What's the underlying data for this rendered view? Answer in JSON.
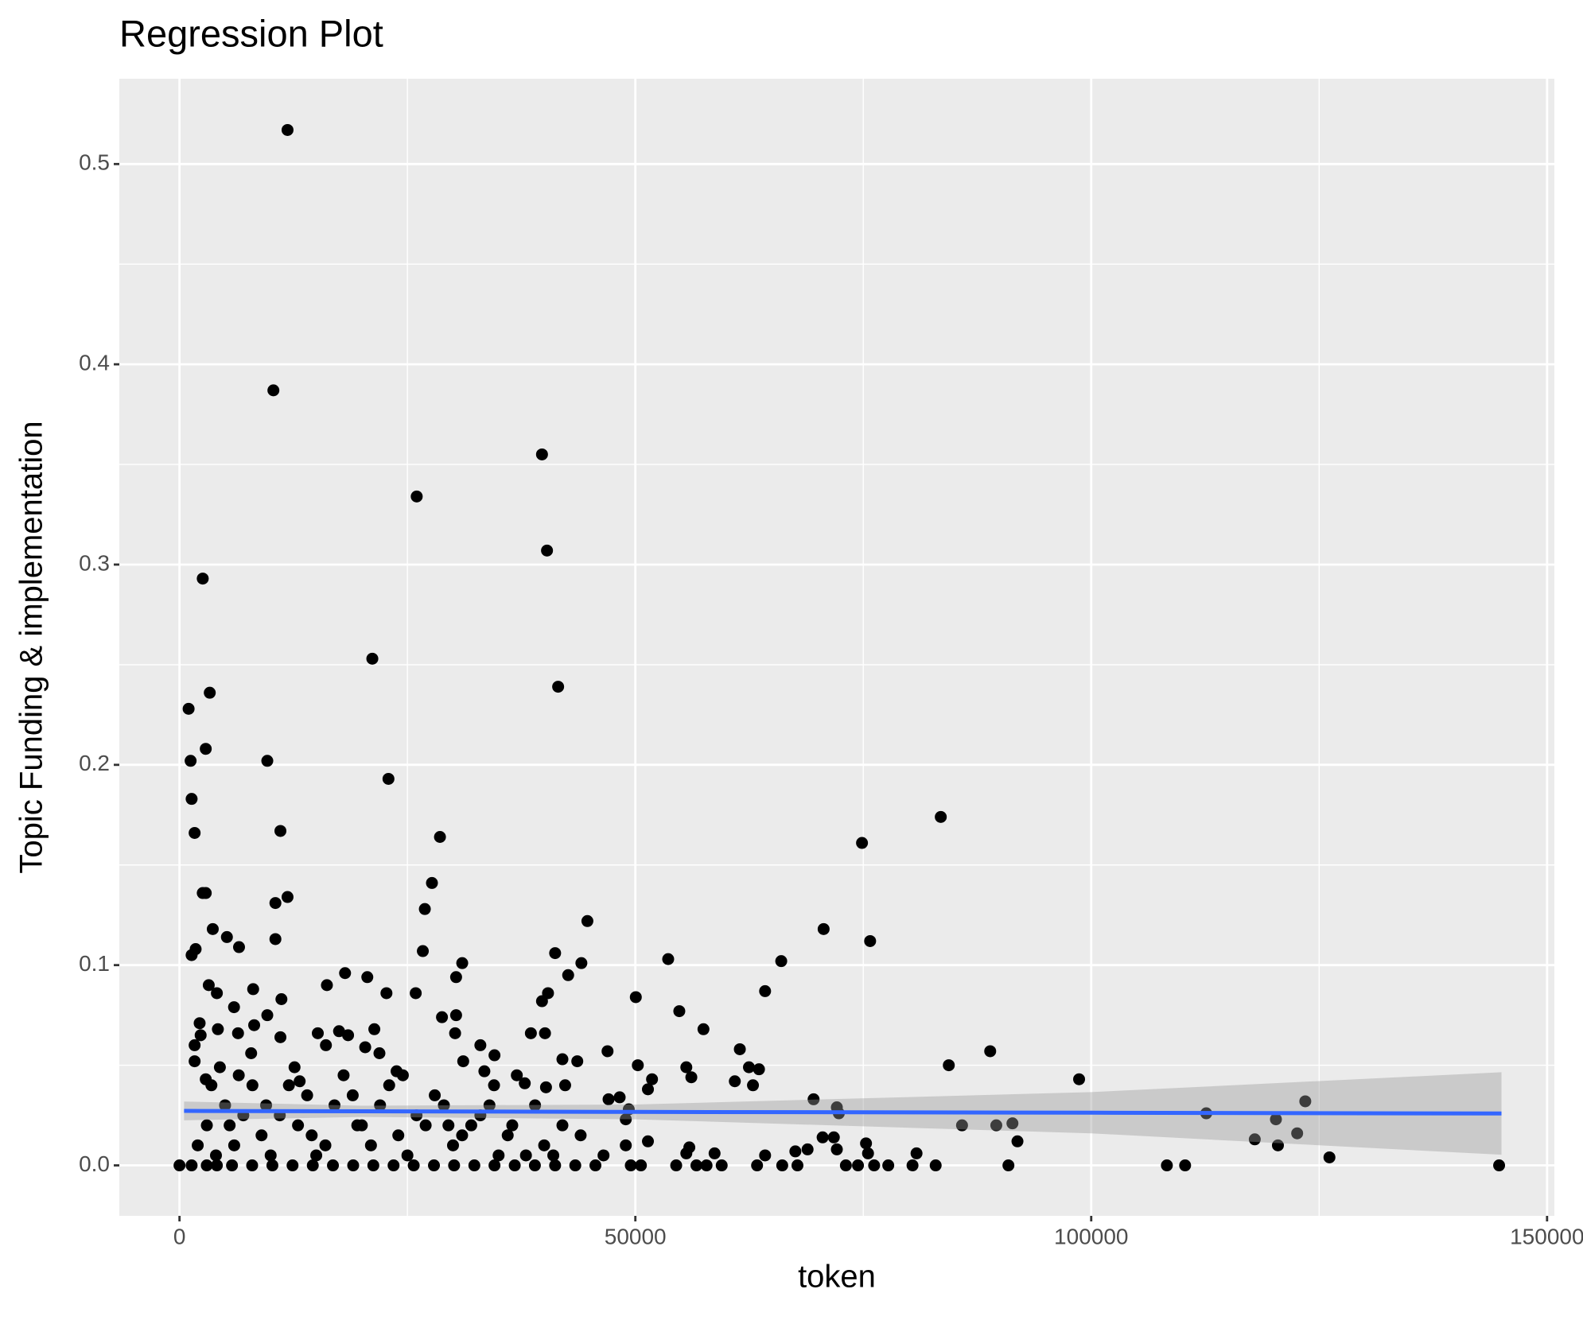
{
  "chart_data": {
    "type": "scatter",
    "title": "Regression Plot",
    "x_label": "token",
    "y_label": "Topic Funding & implementation",
    "xlim": [
      -6600,
      150800
    ],
    "ylim": [
      -0.0252,
      0.5426
    ],
    "xticks": [
      0,
      50000,
      100000,
      150000
    ],
    "yticks": [
      {
        "value": 0,
        "label": "0.0"
      },
      0.1,
      0.2,
      0.3,
      0.4,
      0.5
    ],
    "minor_xticks": [
      25000,
      75000,
      125000
    ],
    "minor_yticks": [
      0.05,
      0.15,
      0.25,
      0.35,
      0.45
    ],
    "grid": true,
    "color": "#000000",
    "x": [
      11850,
      10300,
      39760,
      26020,
      40310,
      2550,
      21150,
      3320,
      41530,
      1000,
      1220,
      2880,
      9630,
      22920,
      1330,
      1660,
      11070,
      28570,
      74860,
      83500,
      2550,
      2880,
      10520,
      11850,
      27690,
      26910,
      44740,
      70650,
      75750,
      10520,
      3650,
      1330,
      1770,
      26690,
      31010,
      41200,
      53600,
      66000,
      44080,
      5200,
      6530,
      18160,
      20600,
      30340,
      42630,
      3210,
      8080,
      16170,
      22700,
      25910,
      50050,
      64230,
      40420,
      39760,
      11180,
      4100,
      5980,
      9630,
      28790,
      30340,
      54820,
      2210,
      8190,
      57470,
      17500,
      21370,
      4210,
      6420,
      11070,
      15170,
      18490,
      30230,
      38540,
      40090,
      2320,
      1660,
      16060,
      20370,
      33000,
      61460,
      88920,
      46950,
      7860,
      21930,
      34550,
      42000,
      43630,
      1660,
      31120,
      84380,
      50270,
      55590,
      62460,
      63560,
      4430,
      12620,
      23810,
      33440,
      51830,
      56140,
      98670,
      60910,
      62900,
      2880,
      13180,
      37870,
      40200,
      42300,
      51380,
      47060,
      48280,
      69550,
      72100,
      123480,
      49280,
      112620,
      72320,
      48950,
      85830,
      89590,
      91360,
      120260,
      122590,
      91910,
      117940,
      70540,
      71770,
      75300,
      120480,
      72100,
      68890,
      51380,
      55920,
      48950,
      126130,
      80840,
      75520,
      58690,
      64230,
      67550,
      46510,
      55590,
      3000,
      5000,
      7000,
      9000,
      12000,
      14000,
      16000,
      18000,
      20000,
      22000,
      24000,
      26000,
      28000,
      30000,
      32000,
      34000,
      36000,
      38000,
      40000,
      42000,
      44000,
      4000,
      6000,
      8000,
      10000,
      13000,
      15000,
      17000,
      19000,
      21000,
      23000,
      25000,
      27000,
      29000,
      31000,
      33000,
      35000,
      37000,
      39000,
      41000,
      6500,
      11000,
      2000,
      3500,
      5500,
      9500,
      14500,
      19500,
      24500,
      29500,
      34500,
      36500,
      0,
      1330,
      2990,
      4100,
      5760,
      7970,
      10190,
      12400,
      14620,
      16830,
      19050,
      21260,
      23480,
      25690,
      27910,
      30120,
      32340,
      34550,
      36770,
      38980,
      41200,
      43410,
      45620,
      49500,
      50610,
      54480,
      56700,
      57810,
      59470,
      63350,
      66110,
      67780,
      73090,
      74420,
      76190,
      77740,
      80400,
      82940,
      90920,
      108300,
      110300,
      144740
    ],
    "y": [
      0.517,
      0.387,
      0.355,
      0.334,
      0.307,
      0.293,
      0.253,
      0.236,
      0.239,
      0.228,
      0.202,
      0.208,
      0.202,
      0.193,
      0.183,
      0.166,
      0.167,
      0.164,
      0.161,
      0.174,
      0.136,
      0.136,
      0.131,
      0.134,
      0.141,
      0.128,
      0.122,
      0.118,
      0.112,
      0.113,
      0.118,
      0.105,
      0.108,
      0.107,
      0.101,
      0.106,
      0.103,
      0.102,
      0.101,
      0.114,
      0.109,
      0.096,
      0.094,
      0.094,
      0.095,
      0.09,
      0.088,
      0.09,
      0.086,
      0.086,
      0.084,
      0.087,
      0.086,
      0.082,
      0.083,
      0.086,
      0.079,
      0.075,
      0.074,
      0.075,
      0.077,
      0.071,
      0.07,
      0.068,
      0.067,
      0.068,
      0.068,
      0.066,
      0.064,
      0.066,
      0.065,
      0.066,
      0.066,
      0.066,
      0.065,
      0.06,
      0.06,
      0.059,
      0.06,
      0.058,
      0.057,
      0.057,
      0.056,
      0.056,
      0.055,
      0.053,
      0.052,
      0.052,
      0.052,
      0.05,
      0.05,
      0.049,
      0.049,
      0.048,
      0.049,
      0.049,
      0.047,
      0.047,
      0.043,
      0.044,
      0.043,
      0.042,
      0.04,
      0.043,
      0.042,
      0.041,
      0.039,
      0.04,
      0.038,
      0.033,
      0.034,
      0.033,
      0.029,
      0.032,
      0.028,
      0.026,
      0.026,
      0.023,
      0.02,
      0.02,
      0.021,
      0.023,
      0.016,
      0.012,
      0.013,
      0.014,
      0.014,
      0.011,
      0.01,
      0.008,
      0.008,
      0.012,
      0.009,
      0.01,
      0.004,
      0.006,
      0.006,
      0.006,
      0.005,
      0.007,
      0.005,
      0.006,
      0.02,
      0.03,
      0.025,
      0.015,
      0.04,
      0.035,
      0.01,
      0.045,
      0.02,
      0.03,
      0.015,
      0.025,
      0.035,
      0.01,
      0.02,
      0.03,
      0.015,
      0.005,
      0.01,
      0.02,
      0.015,
      0.005,
      0.01,
      0.04,
      0.005,
      0.02,
      0.005,
      0.03,
      0.035,
      0.01,
      0.04,
      0.005,
      0.02,
      0.03,
      0.015,
      0.025,
      0.005,
      0.045,
      0.03,
      0.005,
      0.045,
      0.025,
      0.01,
      0.04,
      0.02,
      0.03,
      0.015,
      0.02,
      0.045,
      0.02,
      0.04,
      0.02,
      0,
      0,
      0,
      0,
      0,
      0,
      0,
      0,
      0,
      0,
      0,
      0,
      0,
      0,
      0,
      0,
      0,
      0,
      0,
      0,
      0,
      0,
      0,
      0,
      0,
      0,
      0,
      0,
      0,
      0,
      0,
      0,
      0,
      0,
      0,
      0,
      0,
      0,
      0,
      0,
      0,
      0
    ],
    "regression": {
      "color": "#3366ff",
      "band_color": "#999999",
      "x": [
        500,
        20000,
        50000,
        100000,
        145000
      ],
      "y": [
        0.0272,
        0.027,
        0.0267,
        0.0263,
        0.0259
      ],
      "lower": [
        0.0225,
        0.0242,
        0.023,
        0.016,
        0.0053
      ],
      "upper": [
        0.0319,
        0.0298,
        0.0304,
        0.0366,
        0.0465
      ]
    }
  }
}
